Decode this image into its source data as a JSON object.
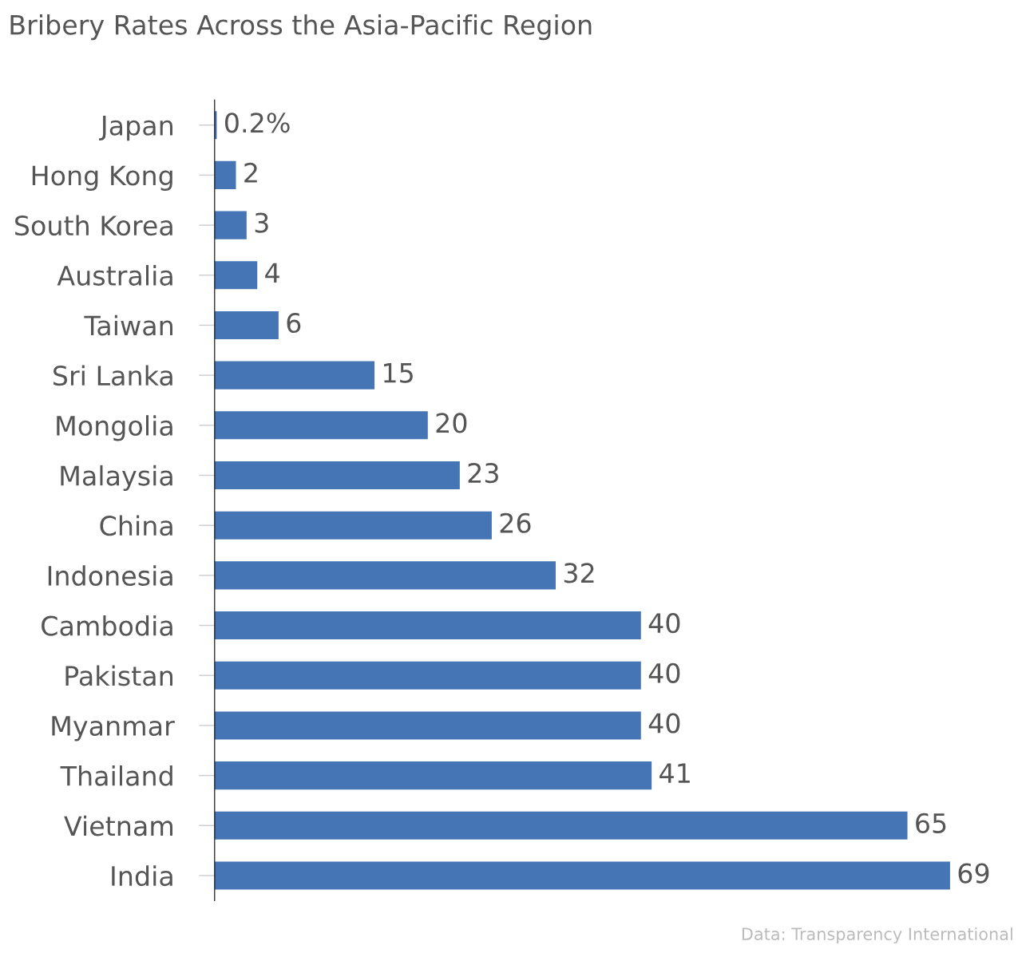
{
  "chart_data": {
    "type": "bar",
    "orientation": "horizontal",
    "title": "Bribery Rates Across the Asia-Pacific Region",
    "categories": [
      "Japan",
      "Hong Kong",
      "South Korea",
      "Australia",
      "Taiwan",
      "Sri Lanka",
      "Mongolia",
      "Malaysia",
      "China",
      "Indonesia",
      "Cambodia",
      "Pakistan",
      "Myanmar",
      "Thailand",
      "Vietnam",
      "India"
    ],
    "values": [
      0.2,
      2,
      3,
      4,
      6,
      15,
      20,
      23,
      26,
      32,
      40,
      40,
      40,
      41,
      65,
      69
    ],
    "value_labels": [
      "0.2%",
      "2",
      "3",
      "4",
      "6",
      "15",
      "20",
      "23",
      "26",
      "32",
      "40",
      "40",
      "40",
      "41",
      "65",
      "69"
    ],
    "color": "#4575b5",
    "tick_labels": "y",
    "grid": false,
    "legend": false,
    "annotations": [
      "Data: Transparency International"
    ]
  }
}
